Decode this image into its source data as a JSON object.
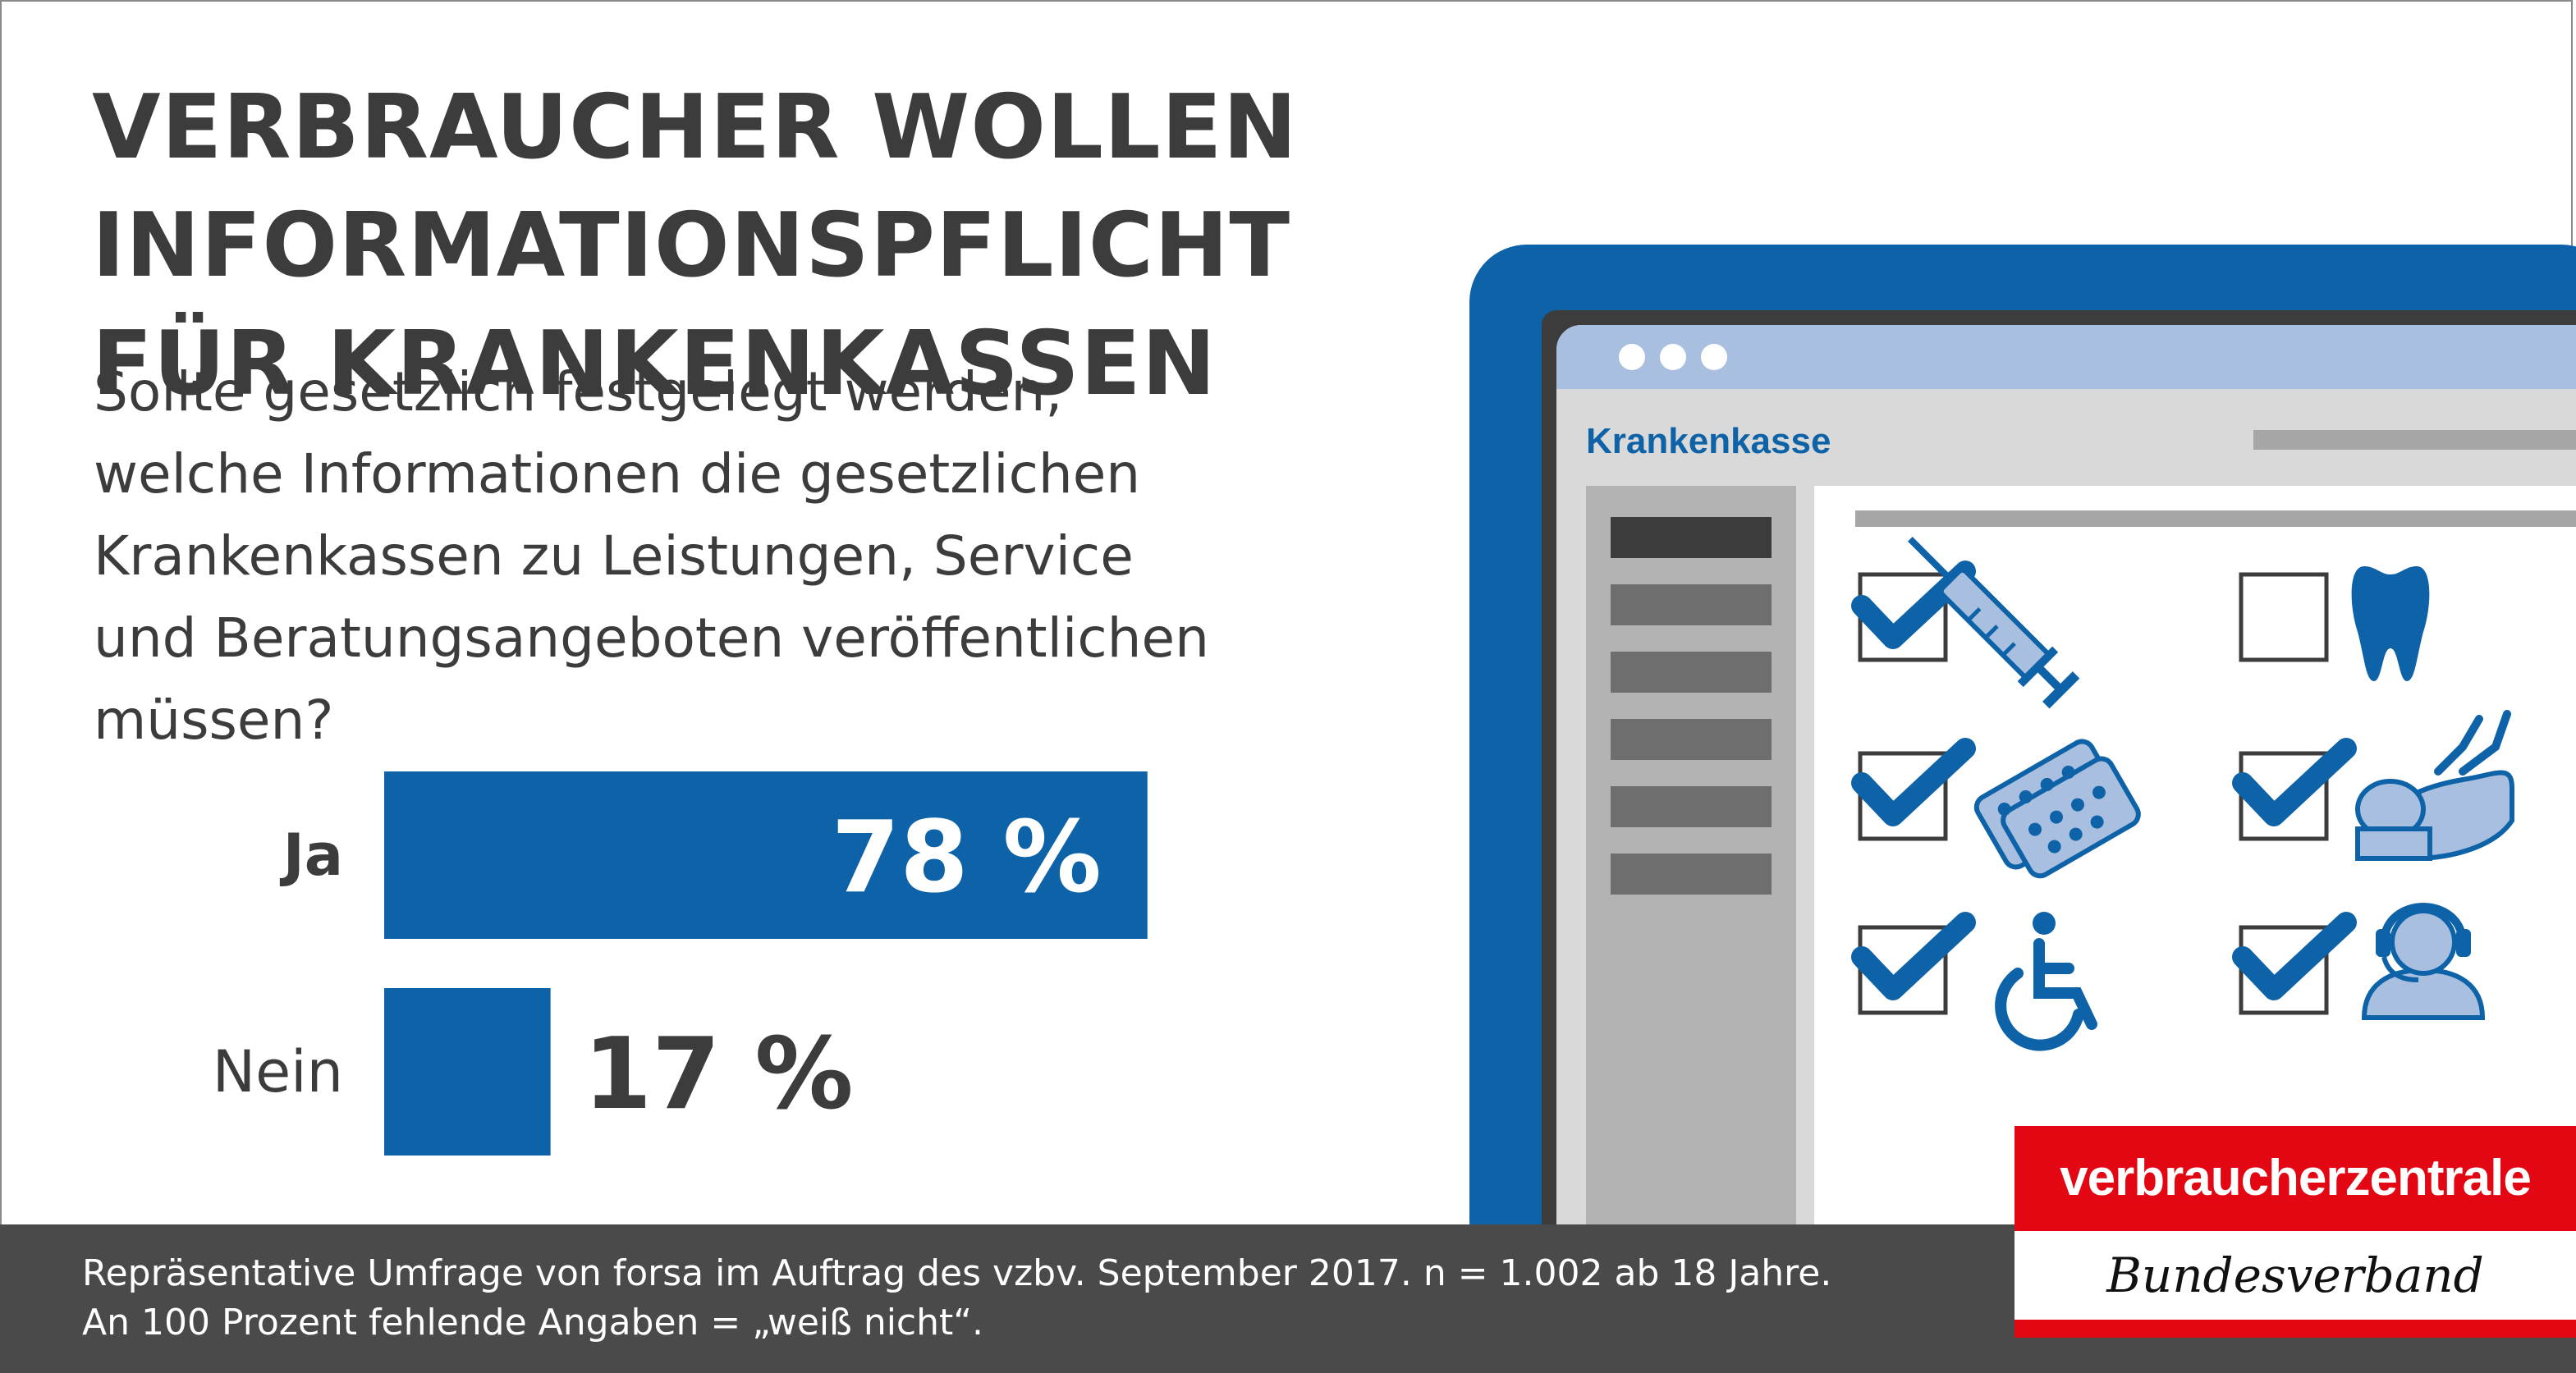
{
  "title": [
    "VERBRAUCHER WOLLEN INFORMATIONSPFLICHT",
    "FÜR KRANKENKASSEN"
  ],
  "question": [
    "Sollte gesetzlich festgelegt werden,",
    "welche Informationen die gesetzlichen",
    "Krankenkassen zu Leistungen, Service",
    "und Beratungsangeboten veröffentlichen",
    "müssen?"
  ],
  "chart_data": {
    "type": "bar",
    "orientation": "horizontal",
    "categories": [
      "Ja",
      "Nein"
    ],
    "values": [
      78,
      17
    ],
    "value_labels": [
      "78 %",
      "17 %"
    ],
    "xlim": [
      0,
      100
    ],
    "unit": "%",
    "color": "#0e63a8",
    "title": "",
    "xlabel": "",
    "ylabel": ""
  },
  "illustration": {
    "window_title": "Krankenkasse",
    "frame_color": "#0e63a8",
    "checklist": [
      {
        "icon": "syringe-icon",
        "checked": true
      },
      {
        "icon": "tooth-icon",
        "checked": false
      },
      {
        "icon": "pills-icon",
        "checked": true
      },
      {
        "icon": "massage-icon",
        "checked": true
      },
      {
        "icon": "wheelchair-icon",
        "checked": true
      },
      {
        "icon": "headset-icon",
        "checked": true
      }
    ]
  },
  "footer": {
    "lines": [
      "Repräsentative Umfrage von forsa im Auftrag des vzbv. September 2017. n = 1.002 ab 18 Jahre.",
      "An 100 Prozent fehlende Angaben = „weiß nicht“."
    ]
  },
  "logo": {
    "line1": "verbraucherzentrale",
    "line2": "Bundesverband",
    "color": "#e30613"
  }
}
